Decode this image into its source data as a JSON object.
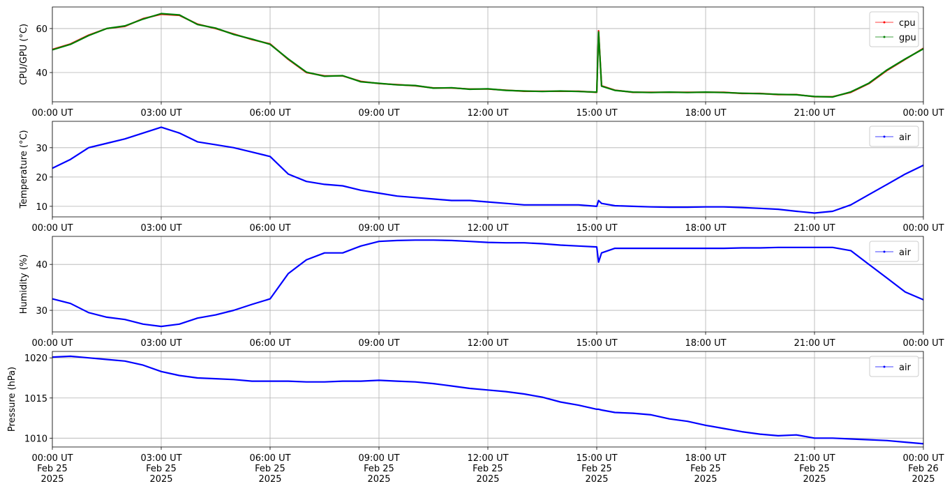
{
  "chart_data": [
    {
      "type": "line",
      "y_label": "CPU/GPU (°C)",
      "grid": true,
      "legend": "upper right",
      "x": [
        "2025-02-25 00:00",
        "2025-02-25 00:30",
        "2025-02-25 01:00",
        "2025-02-25 01:30",
        "2025-02-25 02:00",
        "2025-02-25 02:30",
        "2025-02-25 03:00",
        "2025-02-25 03:30",
        "2025-02-25 04:00",
        "2025-02-25 04:30",
        "2025-02-25 05:00",
        "2025-02-25 05:30",
        "2025-02-25 06:00",
        "2025-02-25 06:30",
        "2025-02-25 07:00",
        "2025-02-25 07:30",
        "2025-02-25 08:00",
        "2025-02-25 08:30",
        "2025-02-25 09:00",
        "2025-02-25 09:30",
        "2025-02-25 10:00",
        "2025-02-25 10:30",
        "2025-02-25 11:00",
        "2025-02-25 11:30",
        "2025-02-25 12:00",
        "2025-02-25 12:30",
        "2025-02-25 13:00",
        "2025-02-25 13:30",
        "2025-02-25 14:00",
        "2025-02-25 14:30",
        "2025-02-25 15:00",
        "2025-02-25 15:03",
        "2025-02-25 15:08",
        "2025-02-25 15:30",
        "2025-02-25 16:00",
        "2025-02-25 16:30",
        "2025-02-25 17:00",
        "2025-02-25 17:30",
        "2025-02-25 18:00",
        "2025-02-25 18:30",
        "2025-02-25 19:00",
        "2025-02-25 19:30",
        "2025-02-25 20:00",
        "2025-02-25 20:30",
        "2025-02-25 21:00",
        "2025-02-25 21:30",
        "2025-02-25 22:00",
        "2025-02-25 22:30",
        "2025-02-25 23:00",
        "2025-02-25 23:30",
        "2025-02-26 00:00"
      ],
      "series": [
        {
          "name": "cpu",
          "color": "#ff0000",
          "values": [
            50.5,
            53,
            57,
            60,
            61,
            64.5,
            66.5,
            66,
            62,
            60,
            57.5,
            55,
            53,
            46,
            40,
            38.5,
            38.5,
            36,
            35,
            34.5,
            34,
            33,
            33,
            32.5,
            32.5,
            32,
            31.5,
            31.5,
            31.5,
            31.5,
            31,
            59,
            34,
            32,
            31,
            31,
            31,
            31,
            31,
            31,
            30.5,
            30.5,
            30,
            30,
            29,
            29,
            31,
            35,
            41,
            46,
            51
          ]
        },
        {
          "name": "gpu",
          "color": "#008000",
          "values": [
            50.3,
            52.8,
            56.8,
            60,
            61.2,
            64.3,
            66.8,
            66.2,
            61.8,
            60.2,
            57.3,
            55.2,
            52.8,
            46.2,
            40.2,
            38.3,
            38.6,
            35.8,
            35.1,
            34.4,
            34.1,
            32.9,
            33.1,
            32.4,
            32.6,
            31.9,
            31.6,
            31.4,
            31.6,
            31.4,
            31.1,
            58.5,
            33.8,
            31.9,
            31.1,
            30.9,
            31.1,
            30.9,
            31.1,
            30.9,
            30.6,
            30.4,
            30.1,
            29.9,
            29.1,
            28.9,
            31.2,
            35.2,
            41.2,
            46.2,
            50.8
          ]
        }
      ],
      "xlim": [
        "2025-02-25 00:00",
        "2025-02-26 00:00"
      ],
      "xticks": [
        {
          "value": "2025-02-25 00:00",
          "label": "00:00 UT"
        },
        {
          "value": "2025-02-25 03:00",
          "label": "03:00 UT"
        },
        {
          "value": "2025-02-25 06:00",
          "label": "06:00 UT"
        },
        {
          "value": "2025-02-25 09:00",
          "label": "09:00 UT"
        },
        {
          "value": "2025-02-25 12:00",
          "label": "12:00 UT"
        },
        {
          "value": "2025-02-25 15:00",
          "label": "15:00 UT"
        },
        {
          "value": "2025-02-25 18:00",
          "label": "18:00 UT"
        },
        {
          "value": "2025-02-25 21:00",
          "label": "21:00 UT"
        },
        {
          "value": "2025-02-26 00:00",
          "label": "00:00 UT"
        }
      ],
      "ylim": [
        26.7,
        69.8
      ],
      "yticks": [
        40,
        60
      ]
    },
    {
      "type": "line",
      "y_label": "Temperature (°C)",
      "grid": true,
      "legend": "upper right",
      "x": [
        "2025-02-25 00:00",
        "2025-02-25 00:30",
        "2025-02-25 01:00",
        "2025-02-25 01:30",
        "2025-02-25 02:00",
        "2025-02-25 02:30",
        "2025-02-25 03:00",
        "2025-02-25 03:30",
        "2025-02-25 04:00",
        "2025-02-25 04:30",
        "2025-02-25 05:00",
        "2025-02-25 05:30",
        "2025-02-25 06:00",
        "2025-02-25 06:30",
        "2025-02-25 07:00",
        "2025-02-25 07:30",
        "2025-02-25 08:00",
        "2025-02-25 08:30",
        "2025-02-25 09:00",
        "2025-02-25 09:30",
        "2025-02-25 10:00",
        "2025-02-25 10:30",
        "2025-02-25 11:00",
        "2025-02-25 11:30",
        "2025-02-25 12:00",
        "2025-02-25 12:30",
        "2025-02-25 13:00",
        "2025-02-25 13:30",
        "2025-02-25 14:00",
        "2025-02-25 14:30",
        "2025-02-25 15:00",
        "2025-02-25 15:03",
        "2025-02-25 15:08",
        "2025-02-25 15:30",
        "2025-02-25 16:00",
        "2025-02-25 16:30",
        "2025-02-25 17:00",
        "2025-02-25 17:30",
        "2025-02-25 18:00",
        "2025-02-25 18:30",
        "2025-02-25 19:00",
        "2025-02-25 19:30",
        "2025-02-25 20:00",
        "2025-02-25 20:30",
        "2025-02-25 21:00",
        "2025-02-25 21:30",
        "2025-02-25 22:00",
        "2025-02-25 22:30",
        "2025-02-25 23:00",
        "2025-02-25 23:30",
        "2025-02-26 00:00"
      ],
      "series": [
        {
          "name": "air",
          "color": "#0000ff",
          "values": [
            23,
            26,
            30,
            31.5,
            33,
            35,
            37,
            35,
            32,
            31,
            30,
            28.5,
            27,
            21,
            18.5,
            17.5,
            17,
            15.5,
            14.5,
            13.5,
            13,
            12.5,
            12,
            12,
            11.5,
            11,
            10.5,
            10.5,
            10.5,
            10.5,
            10,
            12,
            11,
            10.2,
            10,
            9.8,
            9.7,
            9.7,
            9.8,
            9.8,
            9.6,
            9.3,
            9,
            8.3,
            7.7,
            8.3,
            10.5,
            14,
            17.5,
            21,
            24
          ]
        }
      ],
      "xlim": [
        "2025-02-25 00:00",
        "2025-02-26 00:00"
      ],
      "xticks": [
        {
          "value": "2025-02-25 00:00",
          "label": "00:00 UT"
        },
        {
          "value": "2025-02-25 03:00",
          "label": "03:00 UT"
        },
        {
          "value": "2025-02-25 06:00",
          "label": "06:00 UT"
        },
        {
          "value": "2025-02-25 09:00",
          "label": "09:00 UT"
        },
        {
          "value": "2025-02-25 12:00",
          "label": "12:00 UT"
        },
        {
          "value": "2025-02-25 15:00",
          "label": "15:00 UT"
        },
        {
          "value": "2025-02-25 18:00",
          "label": "18:00 UT"
        },
        {
          "value": "2025-02-25 21:00",
          "label": "21:00 UT"
        },
        {
          "value": "2025-02-26 00:00",
          "label": "00:00 UT"
        }
      ],
      "ylim": [
        6.4,
        39.0
      ],
      "yticks": [
        10,
        20,
        30
      ]
    },
    {
      "type": "line",
      "y_label": "Humidity (%)",
      "grid": true,
      "legend": "upper right",
      "x": [
        "2025-02-25 00:00",
        "2025-02-25 00:30",
        "2025-02-25 01:00",
        "2025-02-25 01:30",
        "2025-02-25 02:00",
        "2025-02-25 02:30",
        "2025-02-25 03:00",
        "2025-02-25 03:30",
        "2025-02-25 04:00",
        "2025-02-25 04:30",
        "2025-02-25 05:00",
        "2025-02-25 05:30",
        "2025-02-25 06:00",
        "2025-02-25 06:30",
        "2025-02-25 07:00",
        "2025-02-25 07:30",
        "2025-02-25 08:00",
        "2025-02-25 08:30",
        "2025-02-25 09:00",
        "2025-02-25 09:30",
        "2025-02-25 10:00",
        "2025-02-25 10:30",
        "2025-02-25 11:00",
        "2025-02-25 11:30",
        "2025-02-25 12:00",
        "2025-02-25 12:30",
        "2025-02-25 13:00",
        "2025-02-25 13:30",
        "2025-02-25 14:00",
        "2025-02-25 14:30",
        "2025-02-25 15:00",
        "2025-02-25 15:03",
        "2025-02-25 15:08",
        "2025-02-25 15:30",
        "2025-02-25 16:00",
        "2025-02-25 16:30",
        "2025-02-25 17:00",
        "2025-02-25 17:30",
        "2025-02-25 18:00",
        "2025-02-25 18:30",
        "2025-02-25 19:00",
        "2025-02-25 19:30",
        "2025-02-25 20:00",
        "2025-02-25 20:30",
        "2025-02-25 21:00",
        "2025-02-25 21:30",
        "2025-02-25 22:00",
        "2025-02-25 22:30",
        "2025-02-25 23:00",
        "2025-02-25 23:30",
        "2025-02-26 00:00"
      ],
      "series": [
        {
          "name": "air",
          "color": "#0000ff",
          "values": [
            32.5,
            31.5,
            29.5,
            28.5,
            28,
            27,
            26.5,
            27,
            28.3,
            29,
            30,
            31.3,
            32.5,
            38,
            41,
            42.5,
            42.5,
            44,
            45,
            45.2,
            45.3,
            45.3,
            45.2,
            45,
            44.8,
            44.7,
            44.7,
            44.5,
            44.2,
            44,
            43.8,
            40.5,
            42.5,
            43.5,
            43.5,
            43.5,
            43.5,
            43.5,
            43.5,
            43.5,
            43.6,
            43.6,
            43.7,
            43.7,
            43.7,
            43.7,
            43,
            40,
            37,
            34,
            32.3
          ]
        }
      ],
      "xlim": [
        "2025-02-25 00:00",
        "2025-02-26 00:00"
      ],
      "xticks": [
        {
          "value": "2025-02-25 00:00",
          "label": "00:00 UT"
        },
        {
          "value": "2025-02-25 03:00",
          "label": "03:00 UT"
        },
        {
          "value": "2025-02-25 06:00",
          "label": "06:00 UT"
        },
        {
          "value": "2025-02-25 09:00",
          "label": "09:00 UT"
        },
        {
          "value": "2025-02-25 12:00",
          "label": "12:00 UT"
        },
        {
          "value": "2025-02-25 15:00",
          "label": "15:00 UT"
        },
        {
          "value": "2025-02-25 18:00",
          "label": "18:00 UT"
        },
        {
          "value": "2025-02-25 21:00",
          "label": "21:00 UT"
        },
        {
          "value": "2025-02-26 00:00",
          "label": "00:00 UT"
        }
      ],
      "ylim": [
        25.3,
        46.1
      ],
      "yticks": [
        30,
        40
      ]
    },
    {
      "type": "line",
      "y_label": "Pressure (hPa)",
      "grid": true,
      "legend": "upper right",
      "x": [
        "2025-02-25 00:00",
        "2025-02-25 00:30",
        "2025-02-25 01:00",
        "2025-02-25 01:30",
        "2025-02-25 02:00",
        "2025-02-25 02:30",
        "2025-02-25 03:00",
        "2025-02-25 03:30",
        "2025-02-25 04:00",
        "2025-02-25 04:30",
        "2025-02-25 05:00",
        "2025-02-25 05:30",
        "2025-02-25 06:00",
        "2025-02-25 06:30",
        "2025-02-25 07:00",
        "2025-02-25 07:30",
        "2025-02-25 08:00",
        "2025-02-25 08:30",
        "2025-02-25 09:00",
        "2025-02-25 09:30",
        "2025-02-25 10:00",
        "2025-02-25 10:30",
        "2025-02-25 11:00",
        "2025-02-25 11:30",
        "2025-02-25 12:00",
        "2025-02-25 12:30",
        "2025-02-25 13:00",
        "2025-02-25 13:30",
        "2025-02-25 14:00",
        "2025-02-25 14:30",
        "2025-02-25 15:00",
        "2025-02-25 15:03",
        "2025-02-25 15:08",
        "2025-02-25 15:30",
        "2025-02-25 16:00",
        "2025-02-25 16:30",
        "2025-02-25 17:00",
        "2025-02-25 17:30",
        "2025-02-25 18:00",
        "2025-02-25 18:30",
        "2025-02-25 19:00",
        "2025-02-25 19:30",
        "2025-02-25 20:00",
        "2025-02-25 20:30",
        "2025-02-25 21:00",
        "2025-02-25 21:30",
        "2025-02-25 22:00",
        "2025-02-25 22:30",
        "2025-02-25 23:00",
        "2025-02-25 23:30",
        "2025-02-26 00:00"
      ],
      "series": [
        {
          "name": "air",
          "color": "#0000ff",
          "values": [
            1020.1,
            1020.2,
            1020,
            1019.8,
            1019.6,
            1019.1,
            1018.3,
            1017.8,
            1017.5,
            1017.4,
            1017.3,
            1017.1,
            1017.1,
            1017.1,
            1017,
            1017,
            1017.1,
            1017.1,
            1017.2,
            1017.1,
            1017,
            1016.8,
            1016.5,
            1016.2,
            1016,
            1015.8,
            1015.5,
            1015.1,
            1014.5,
            1014.1,
            1013.6,
            1013.6,
            1013.5,
            1013.2,
            1013.1,
            1012.9,
            1012.4,
            1012.1,
            1011.6,
            1011.2,
            1010.8,
            1010.5,
            1010.3,
            1010.4,
            1010,
            1010,
            1009.9,
            1009.8,
            1009.7,
            1009.5,
            1009.3
          ]
        }
      ],
      "xlim": [
        "2025-02-25 00:00",
        "2025-02-26 00:00"
      ],
      "xticks": [
        {
          "value": "2025-02-25 00:00",
          "label": "00:00 UT\nFeb 25\n2025"
        },
        {
          "value": "2025-02-25 03:00",
          "label": "03:00 UT\nFeb 25\n2025"
        },
        {
          "value": "2025-02-25 06:00",
          "label": "06:00 UT\nFeb 25\n2025"
        },
        {
          "value": "2025-02-25 09:00",
          "label": "09:00 UT\nFeb 25\n2025"
        },
        {
          "value": "2025-02-25 12:00",
          "label": "12:00 UT\nFeb 25\n2025"
        },
        {
          "value": "2025-02-25 15:00",
          "label": "15:00 UT\nFeb 25\n2025"
        },
        {
          "value": "2025-02-25 18:00",
          "label": "18:00 UT\nFeb 25\n2025"
        },
        {
          "value": "2025-02-25 21:00",
          "label": "21:00 UT\nFeb 25\n2025"
        },
        {
          "value": "2025-02-26 00:00",
          "label": "00:00 UT\nFeb 26\n2025"
        }
      ],
      "ylim": [
        1008.9,
        1020.8
      ],
      "yticks": [
        1010,
        1015,
        1020
      ]
    }
  ]
}
